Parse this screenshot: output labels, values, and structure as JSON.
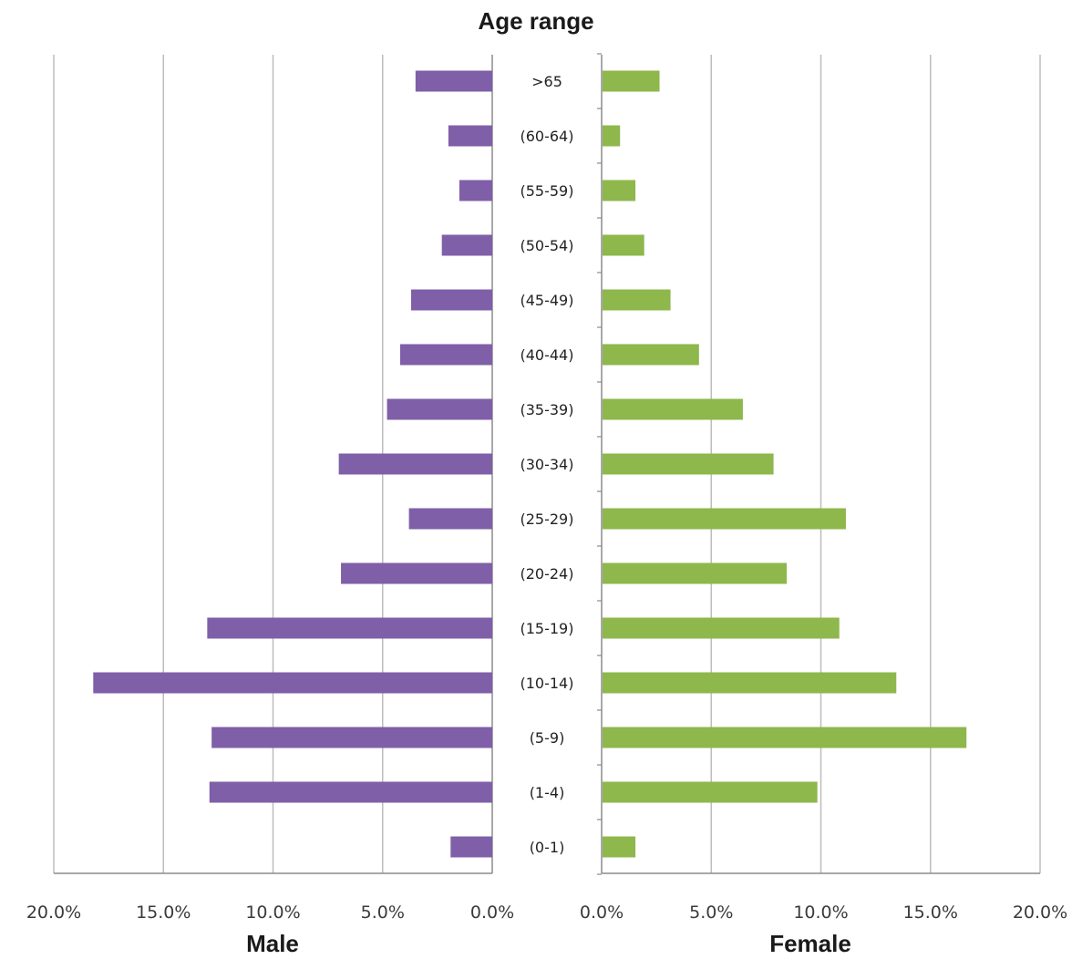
{
  "chart_data": {
    "type": "bar",
    "title": "Age range",
    "categories": [
      ">65",
      "(60-64)",
      "(55-59)",
      "(50-54)",
      "(45-49)",
      "(40-44)",
      "(35-39)",
      "(30-34)",
      "(25-29)",
      "(20-24)",
      "(15-19)",
      "(10-14)",
      "(5-9)",
      "(1-4)",
      "(0-1)"
    ],
    "series": [
      {
        "name": "Male",
        "color": "#7f5fa8",
        "values": [
          3.5,
          2.0,
          1.5,
          2.3,
          3.7,
          4.2,
          4.8,
          7.0,
          3.8,
          6.9,
          13.0,
          18.2,
          12.8,
          12.9,
          1.9
        ]
      },
      {
        "name": "Female",
        "color": "#8eb74c",
        "values": [
          2.6,
          0.8,
          1.5,
          1.9,
          3.1,
          4.4,
          6.4,
          7.8,
          11.1,
          8.4,
          10.8,
          13.4,
          16.6,
          9.8,
          1.5
        ]
      }
    ],
    "xlim": [
      0,
      20
    ],
    "x_ticks": [
      "0.0%",
      "5.0%",
      "10.0%",
      "15.0%",
      "20.0%"
    ],
    "male_x_ticks": [
      "20.0%",
      "15.0%",
      "10.0%",
      "5.0%",
      "0.0%"
    ],
    "grid": true,
    "layout": "back-to-back horizontal bars (population pyramid)"
  }
}
